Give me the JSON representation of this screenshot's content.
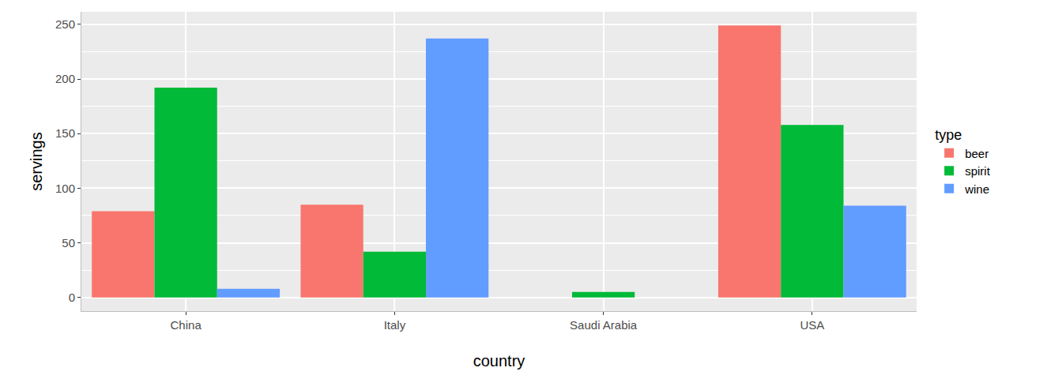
{
  "chart_data": {
    "type": "bar",
    "x_label": "country",
    "y_label": "servings",
    "legend_title": "type",
    "legend": "right",
    "grid": true,
    "categories": [
      "China",
      "Italy",
      "Saudi Arabia",
      "USA"
    ],
    "series": [
      {
        "name": "beer",
        "color": "#F8766D",
        "values": [
          79,
          85,
          0,
          249
        ]
      },
      {
        "name": "spirit",
        "color": "#00BA38",
        "values": [
          192,
          42,
          5,
          158
        ]
      },
      {
        "name": "wine",
        "color": "#619CFF",
        "values": [
          8,
          237,
          0,
          84
        ]
      }
    ],
    "ylim": [
      -12.45,
      261.45
    ],
    "yticks": [
      0,
      50,
      100,
      150,
      200,
      250
    ]
  }
}
